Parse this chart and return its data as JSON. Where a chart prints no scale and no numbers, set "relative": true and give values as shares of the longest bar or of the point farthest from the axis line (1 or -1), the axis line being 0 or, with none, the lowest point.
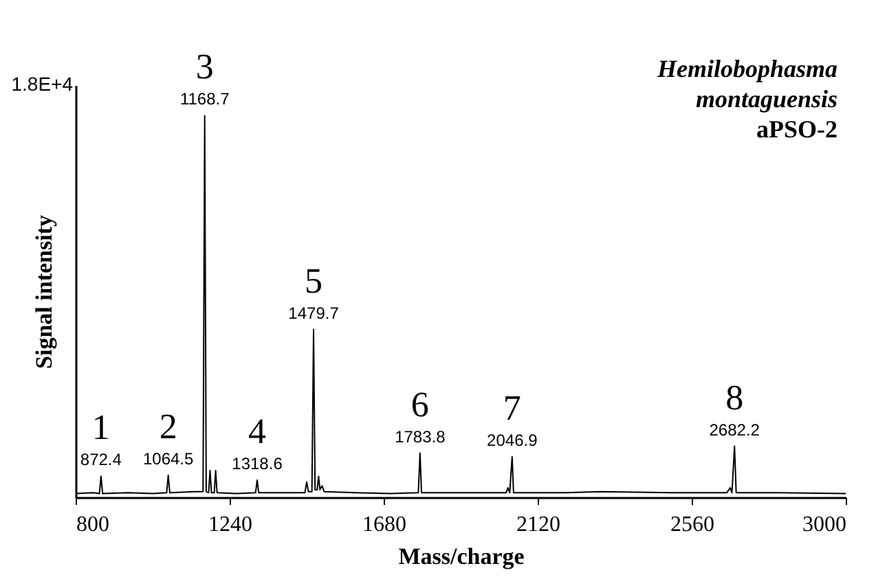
{
  "chart_data": {
    "type": "line",
    "relative": true,
    "xlabel": "Mass/charge",
    "ylabel": "Signal intensity",
    "xlim": [
      800,
      3000
    ],
    "xticks": [
      800,
      1240,
      1680,
      2120,
      2560,
      3000
    ],
    "grid": false,
    "marker": "none",
    "line_style": "solid",
    "series": [
      {
        "color": "#000000",
        "x": [
          800,
          850,
          868,
          872.4,
          877,
          950,
          1020,
          1060,
          1064.5,
          1069,
          1140,
          1164,
          1168.7,
          1173,
          1180,
          1184,
          1188,
          1196,
          1200,
          1204,
          1260,
          1314,
          1318.6,
          1323,
          1400,
          1455,
          1460,
          1465,
          1475,
          1479.7,
          1484,
          1490,
          1494,
          1498,
          1504,
          1510,
          1600,
          1700,
          1779,
          1783.8,
          1788,
          1900,
          2030,
          2035,
          2040,
          2046.9,
          2051,
          2200,
          2300,
          2500,
          2660,
          2670,
          2675,
          2682.2,
          2687,
          2800,
          3000
        ],
        "values": [
          0.01,
          0.012,
          0.01,
          0.055,
          0.01,
          0.012,
          0.01,
          0.012,
          0.058,
          0.012,
          0.015,
          0.015,
          1,
          0.015,
          0.012,
          0.07,
          0.012,
          0.012,
          0.07,
          0.012,
          0.01,
          0.012,
          0.045,
          0.012,
          0.012,
          0.012,
          0.04,
          0.015,
          0.015,
          0.44,
          0.02,
          0.02,
          0.055,
          0.02,
          0.03,
          0.015,
          0.012,
          0.01,
          0.012,
          0.116,
          0.012,
          0.012,
          0.012,
          0.025,
          0.012,
          0.106,
          0.012,
          0.012,
          0.015,
          0.012,
          0.012,
          0.025,
          0.012,
          0.134,
          0.012,
          0.012,
          0.01
        ]
      }
    ],
    "annotations": [
      {
        "text": "1",
        "x": 872.4,
        "y": 0.055
      },
      {
        "text": "872.4",
        "x": 872.4,
        "y": 0.055
      },
      {
        "text": "2",
        "x": 1064.5,
        "y": 0.058
      },
      {
        "text": "1064.5",
        "x": 1064.5,
        "y": 0.058
      },
      {
        "text": "3",
        "x": 1168.7,
        "y": 1
      },
      {
        "text": "1168.7",
        "x": 1168.7,
        "y": 1
      },
      {
        "text": "4",
        "x": 1318.6,
        "y": 0.045
      },
      {
        "text": "1318.6",
        "x": 1318.6,
        "y": 0.045
      },
      {
        "text": "5",
        "x": 1479.7,
        "y": 0.44
      },
      {
        "text": "1479.7",
        "x": 1479.7,
        "y": 0.44
      },
      {
        "text": "6",
        "x": 1783.8,
        "y": 0.116
      },
      {
        "text": "1783.8",
        "x": 1783.8,
        "y": 0.116
      },
      {
        "text": "7",
        "x": 2046.9,
        "y": 0.106
      },
      {
        "text": "2046.9",
        "x": 2046.9,
        "y": 0.106
      },
      {
        "text": "8",
        "x": 2682.2,
        "y": 0.134
      },
      {
        "text": "2682.2",
        "x": 2682.2,
        "y": 0.134
      },
      "Hemilobophasma",
      "montaguensis",
      "aPSO-2",
      "1.8E+4"
    ]
  }
}
